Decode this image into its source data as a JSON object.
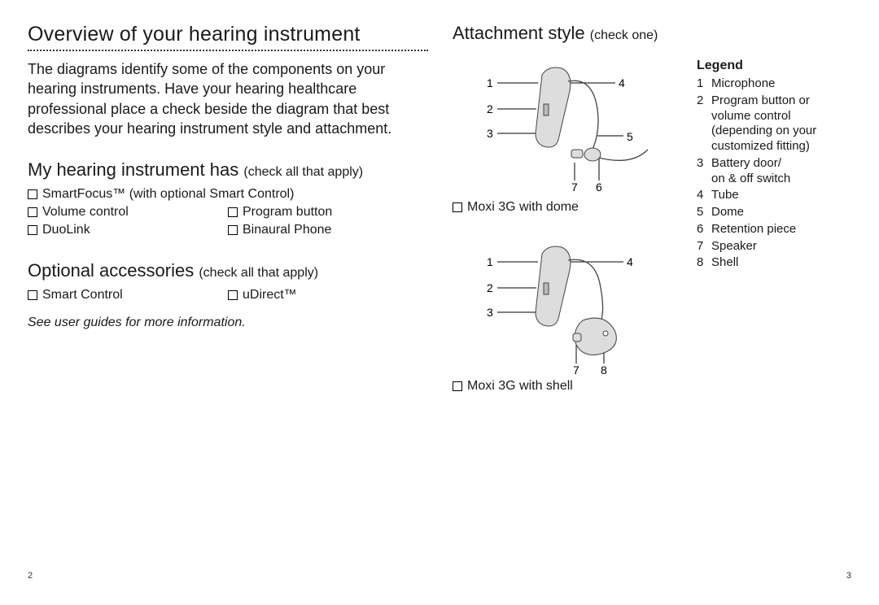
{
  "left": {
    "title": "Overview of your hearing instrument",
    "intro": "The diagrams identify some of the components on your hearing instruments. Have your hearing healthcare professional place a check beside the diagram that best describes your hearing instrument style and attachment.",
    "section_features_title": "My hearing instrument has",
    "section_features_note": "check all that apply",
    "features": [
      [
        "SmartFocus™ (with optional Smart Control)",
        ""
      ],
      [
        "Volume control",
        "Program button"
      ],
      [
        "DuoLink",
        "Binaural Phone"
      ]
    ],
    "section_accessories_title": "Optional accessories",
    "section_accessories_note": "check all that apply",
    "accessories": [
      [
        "Smart Control",
        "uDirect™"
      ]
    ],
    "footnote": "See user guides for more information.",
    "page_number": "2"
  },
  "right": {
    "title": "Attachment style",
    "title_note": "check one",
    "diagram1_caption": "Moxi 3G with dome",
    "diagram2_caption": "Moxi 3G with shell",
    "page_number": "3",
    "legend_title": "Legend",
    "legend": [
      {
        "n": "1",
        "t": "Microphone"
      },
      {
        "n": "2",
        "t": "Program button or volume control (depending on your customized fitting)"
      },
      {
        "n": "3",
        "t": "Battery door/\non & off switch"
      },
      {
        "n": "4",
        "t": "Tube"
      },
      {
        "n": "5",
        "t": "Dome"
      },
      {
        "n": "6",
        "t": "Retention piece"
      },
      {
        "n": "7",
        "t": "Speaker"
      },
      {
        "n": "8",
        "t": "Shell"
      }
    ],
    "callouts_d1": [
      "1",
      "2",
      "3",
      "4",
      "5",
      "6",
      "7"
    ],
    "callouts_d2": [
      "1",
      "2",
      "3",
      "4",
      "7",
      "8"
    ]
  },
  "colors": {
    "text": "#1a1a1a",
    "border": "#333333",
    "device_fill": "#dddddd",
    "device_stroke": "#444444",
    "background": "#ffffff"
  }
}
